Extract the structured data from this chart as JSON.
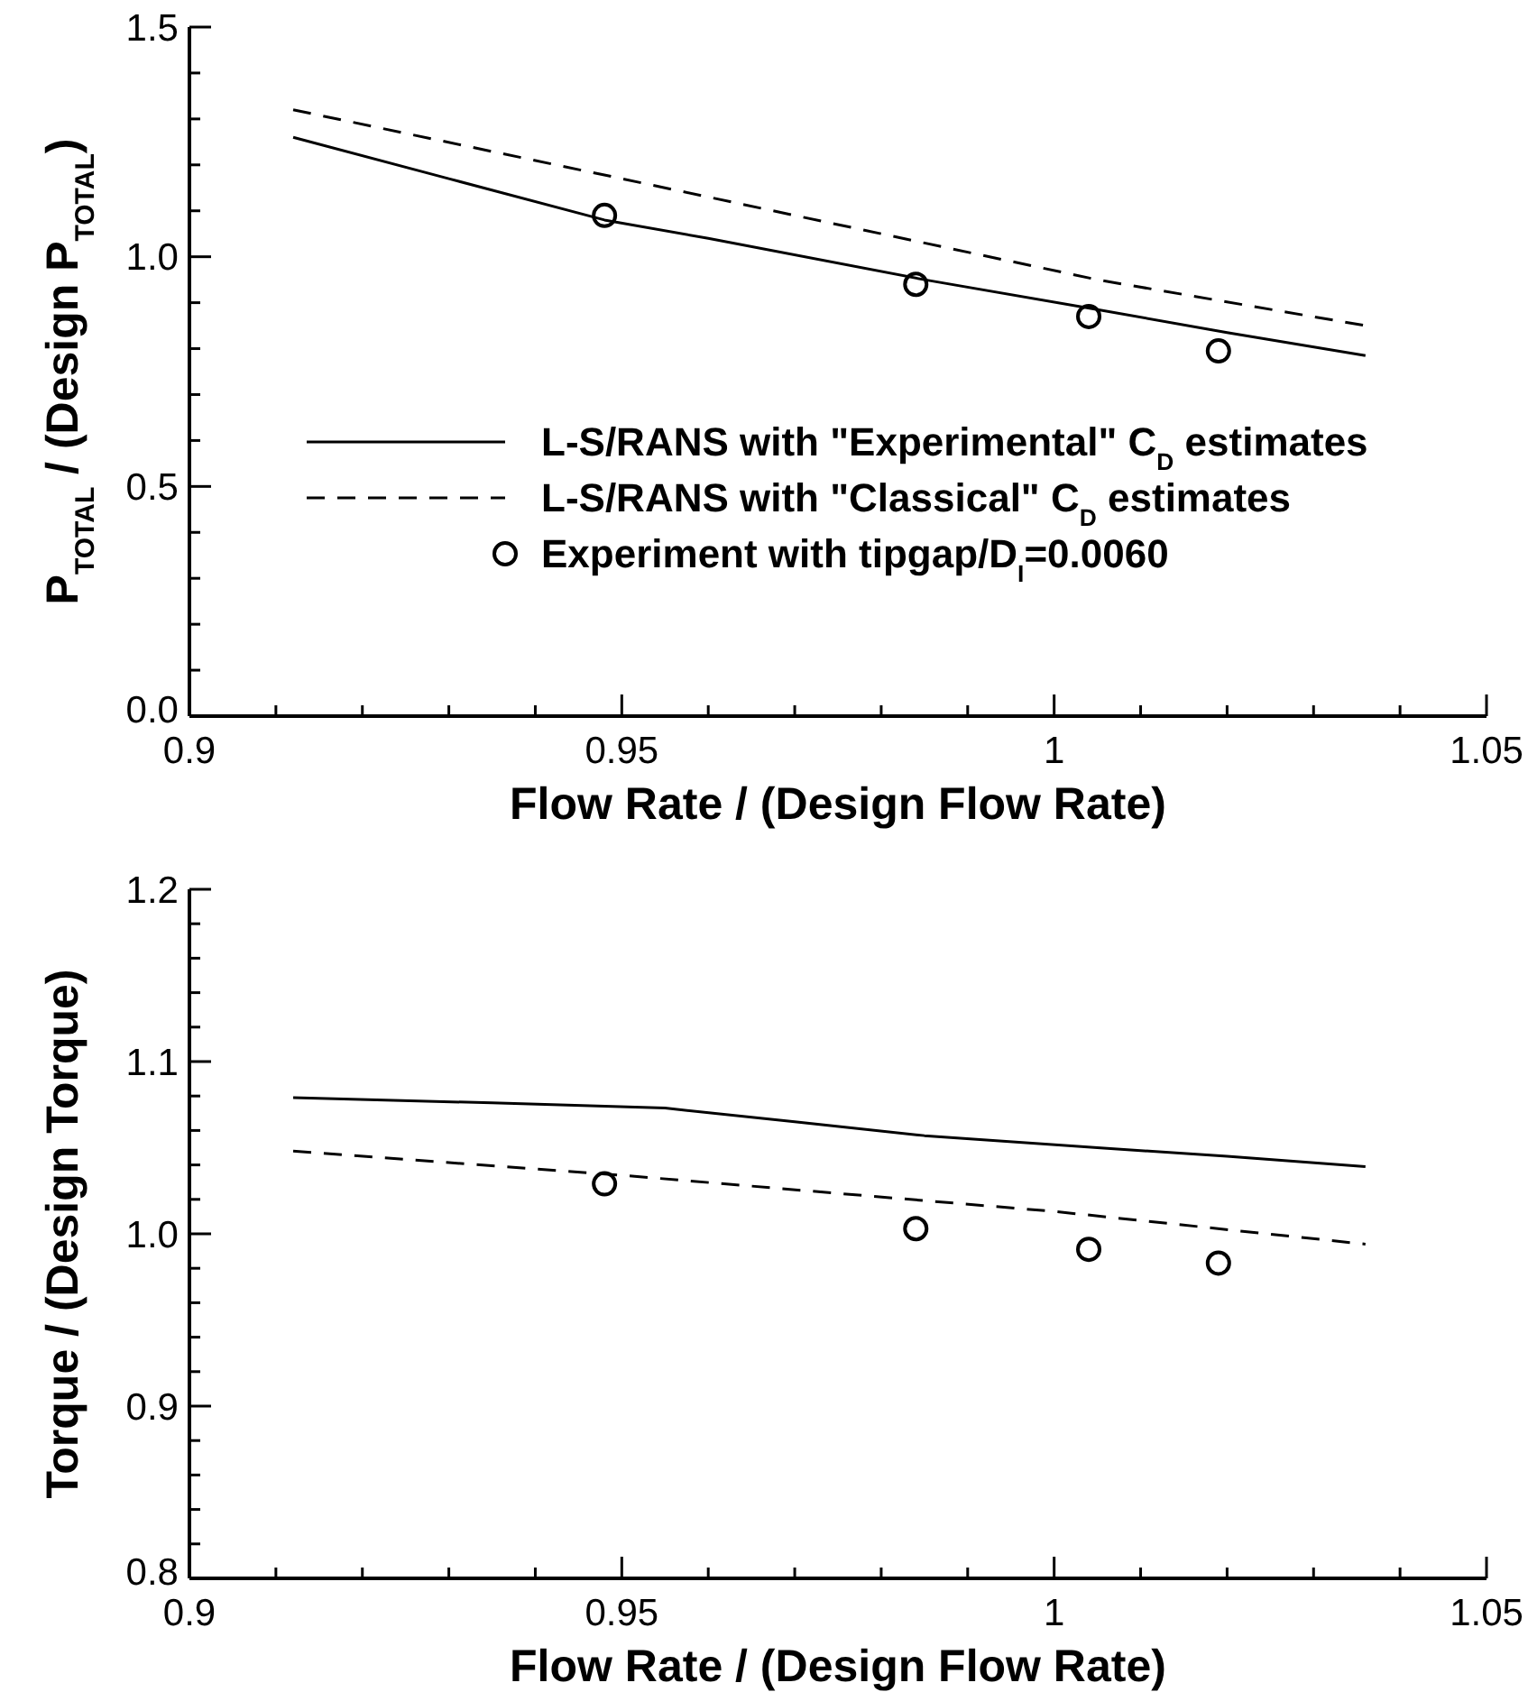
{
  "chart_data": [
    {
      "type": "line",
      "ylabel": "P$_{TOTAL}$ / (Design P$_{TOTAL}$)",
      "xlabel": "Flow Rate / (Design Flow Rate)",
      "xlim": [
        0.9,
        1.05
      ],
      "ylim": [
        0,
        1.5
      ],
      "xticks": [
        0.9,
        {
          "value": 0.91,
          "label": null
        },
        {
          "value": 0.92,
          "label": null
        },
        {
          "value": 0.93,
          "label": null
        },
        {
          "value": 0.94,
          "label": null
        },
        0.95,
        {
          "value": 0.96,
          "label": null
        },
        {
          "value": 0.97,
          "label": null
        },
        {
          "value": 0.98,
          "label": null
        },
        {
          "value": 0.99,
          "label": null
        },
        {
          "value": 1,
          "label": "1"
        },
        {
          "value": 1.01,
          "label": null
        },
        {
          "value": 1.02,
          "label": null
        },
        {
          "value": 1.03,
          "label": null
        },
        {
          "value": 1.04,
          "label": null
        },
        1.05
      ],
      "yticks": [
        {
          "value": 0,
          "label": "0.0"
        },
        {
          "value": 0.1,
          "label": null
        },
        {
          "value": 0.2,
          "label": null
        },
        {
          "value": 0.3,
          "label": null
        },
        {
          "value": 0.4,
          "label": null
        },
        0.5,
        {
          "value": 0.6,
          "label": null
        },
        {
          "value": 0.7,
          "label": null
        },
        {
          "value": 0.8,
          "label": null
        },
        {
          "value": 0.9,
          "label": null
        },
        {
          "value": 1,
          "label": "1.0"
        },
        {
          "value": 1.1,
          "label": null
        },
        {
          "value": 1.2,
          "label": null
        },
        {
          "value": 1.3,
          "label": null
        },
        {
          "value": 1.4,
          "label": null
        },
        1.5
      ],
      "legend": "center right",
      "grid": false,
      "series": [
        {
          "name": "L-S/RANS with \"Experimental\" C$_{D}$ estimates",
          "type": "line",
          "line_style": "solid",
          "marker": "none",
          "color": "#000000",
          "x": [
            0.912,
            0.93,
            0.948,
            0.96,
            0.985,
            1.005,
            1.02,
            1.036
          ],
          "values": [
            1.26,
            1.17,
            1.08,
            1.04,
            0.95,
            0.885,
            0.835,
            0.785
          ]
        },
        {
          "name": "L-S/RANS with \"Classical\" C$_{D}$ estimates",
          "type": "line",
          "line_style": "dashed",
          "marker": "none",
          "color": "#000000",
          "x": [
            0.912,
            0.95,
            0.985,
            1.005,
            1.036
          ],
          "values": [
            1.32,
            1.17,
            1.03,
            0.95,
            0.85
          ]
        },
        {
          "name": "Experiment with tipgap/D$_{I}$=0.0060",
          "type": "scatter",
          "marker": "circle",
          "color": "#000000",
          "x": [
            0.948,
            0.984,
            1.004,
            1.019
          ],
          "values": [
            1.09,
            0.94,
            0.87,
            0.795
          ]
        }
      ]
    },
    {
      "type": "line",
      "ylabel": "Torque / (Design Torque)",
      "xlabel": "Flow Rate / (Design Flow Rate)",
      "xlim": [
        0.9,
        1.05
      ],
      "ylim": [
        0.8,
        1.2
      ],
      "xticks": [
        0.9,
        {
          "value": 0.91,
          "label": null
        },
        {
          "value": 0.92,
          "label": null
        },
        {
          "value": 0.93,
          "label": null
        },
        {
          "value": 0.94,
          "label": null
        },
        0.95,
        {
          "value": 0.96,
          "label": null
        },
        {
          "value": 0.97,
          "label": null
        },
        {
          "value": 0.98,
          "label": null
        },
        {
          "value": 0.99,
          "label": null
        },
        {
          "value": 1,
          "label": "1"
        },
        {
          "value": 1.01,
          "label": null
        },
        {
          "value": 1.02,
          "label": null
        },
        {
          "value": 1.03,
          "label": null
        },
        {
          "value": 1.04,
          "label": null
        },
        1.05
      ],
      "yticks": [
        0.8,
        {
          "value": 0.82,
          "label": null
        },
        {
          "value": 0.84,
          "label": null
        },
        {
          "value": 0.86,
          "label": null
        },
        {
          "value": 0.88,
          "label": null
        },
        0.9,
        {
          "value": 0.92,
          "label": null
        },
        {
          "value": 0.94,
          "label": null
        },
        {
          "value": 0.96,
          "label": null
        },
        {
          "value": 0.98,
          "label": null
        },
        {
          "value": 1,
          "label": "1.0"
        },
        {
          "value": 1.02,
          "label": null
        },
        {
          "value": 1.04,
          "label": null
        },
        {
          "value": 1.06,
          "label": null
        },
        {
          "value": 1.08,
          "label": null
        },
        1.1,
        {
          "value": 1.12,
          "label": null
        },
        {
          "value": 1.14,
          "label": null
        },
        {
          "value": 1.16,
          "label": null
        },
        {
          "value": 1.18,
          "label": null
        },
        1.2
      ],
      "grid": false,
      "series": [
        {
          "type": "line",
          "line_style": "solid",
          "marker": "none",
          "color": "#000000",
          "x": [
            0.912,
            0.935,
            0.955,
            0.97,
            0.985,
            1.005,
            1.02,
            1.036
          ],
          "values": [
            1.079,
            1.076,
            1.073,
            1.065,
            1.057,
            1.05,
            1.045,
            1.039
          ]
        },
        {
          "type": "line",
          "line_style": "dashed",
          "marker": "none",
          "color": "#000000",
          "x": [
            0.912,
            0.95,
            1.0,
            1.036
          ],
          "values": [
            1.048,
            1.034,
            1.013,
            0.994
          ]
        },
        {
          "type": "scatter",
          "marker": "circle",
          "color": "#000000",
          "x": [
            0.948,
            0.984,
            1.004,
            1.019
          ],
          "values": [
            1.029,
            1.003,
            0.991,
            0.983
          ]
        }
      ]
    }
  ]
}
